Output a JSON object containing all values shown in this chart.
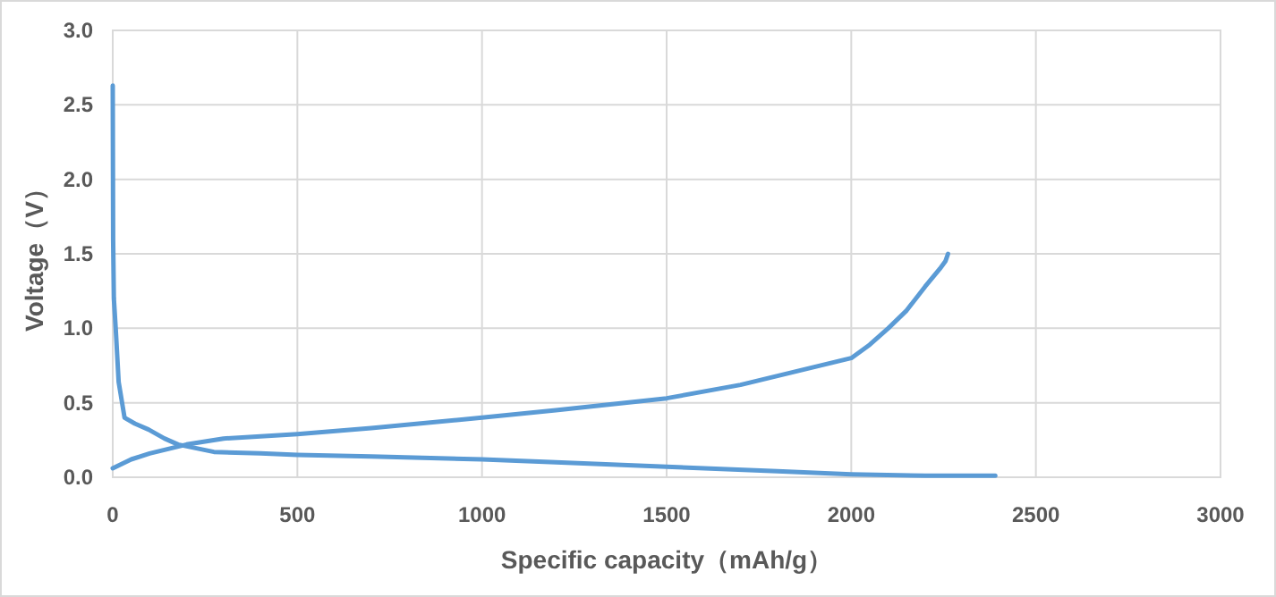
{
  "chart_data": {
    "type": "line",
    "xlabel": "Specific capacity（mAh/g）",
    "ylabel": "Voltage（V）",
    "xlim": [
      0,
      3000
    ],
    "ylim": [
      0,
      3.0
    ],
    "xticks": [
      0,
      500,
      1000,
      1500,
      2000,
      2500,
      3000
    ],
    "yticks": [
      {
        "value": 0,
        "label": "0.0"
      },
      {
        "value": 0.5,
        "label": "0.5"
      },
      {
        "value": 1,
        "label": "1.0"
      },
      {
        "value": 1.5,
        "label": "1.5"
      },
      {
        "value": 2,
        "label": "2.0"
      },
      {
        "value": 2.5,
        "label": "2.5"
      },
      {
        "value": 3,
        "label": "3.0"
      }
    ],
    "grid": true,
    "marker": "none",
    "line_style": "solid",
    "series": [
      {
        "color": "#5b9bd5",
        "x": [
          0,
          1,
          3,
          8,
          16,
          32,
          60,
          97,
          140,
          177,
          274,
          400,
          500,
          700,
          1000,
          1200,
          1500,
          1800,
          2000,
          2200,
          2390
        ],
        "values": [
          2.63,
          1.6,
          1.2,
          1.0,
          0.64,
          0.4,
          0.36,
          0.32,
          0.26,
          0.22,
          0.17,
          0.16,
          0.15,
          0.14,
          0.12,
          0.1,
          0.07,
          0.04,
          0.02,
          0.01,
          0.01
        ]
      },
      {
        "color": "#5b9bd5",
        "x": [
          0,
          50,
          100,
          200,
          300,
          500,
          700,
          1000,
          1200,
          1500,
          1700,
          1800,
          1900,
          2000,
          2050,
          2100,
          2150,
          2200,
          2240,
          2255,
          2262
        ],
        "values": [
          0.06,
          0.12,
          0.16,
          0.22,
          0.26,
          0.29,
          0.33,
          0.4,
          0.45,
          0.53,
          0.62,
          0.68,
          0.74,
          0.8,
          0.89,
          1.0,
          1.12,
          1.28,
          1.4,
          1.45,
          1.5
        ]
      }
    ]
  }
}
